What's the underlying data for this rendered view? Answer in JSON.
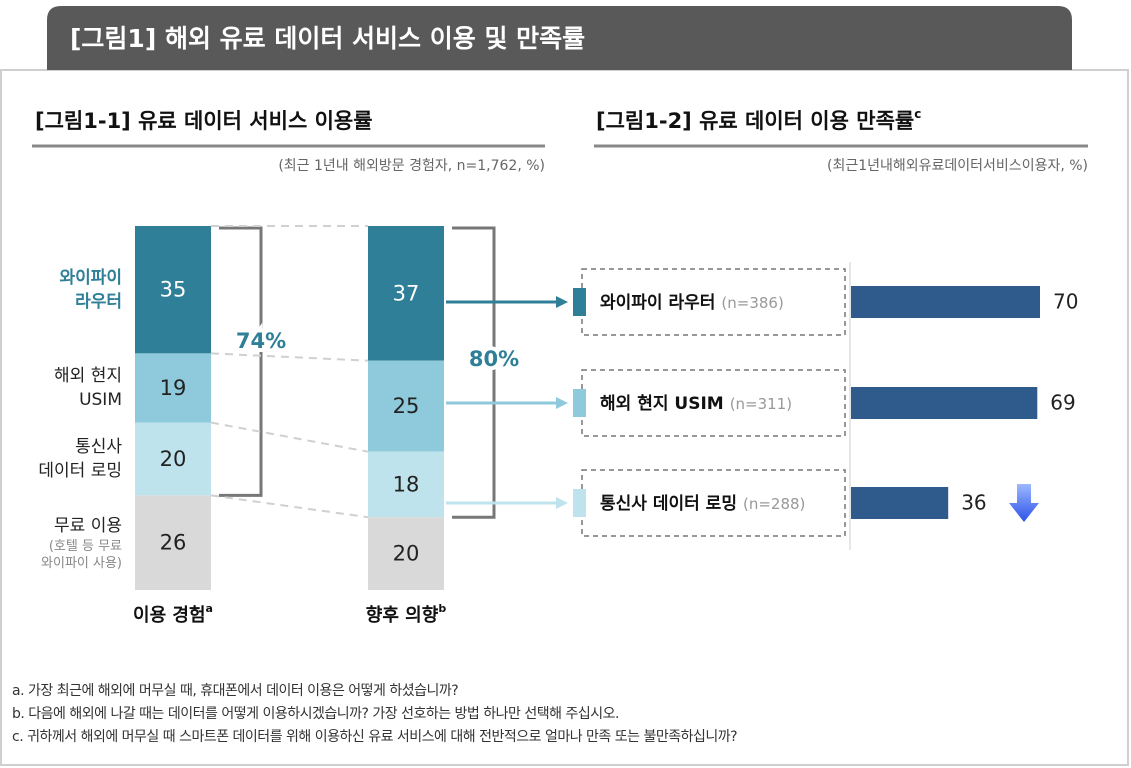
{
  "header": {
    "title": "[그림1] 해외 유료 데이터 서비스 이용 및 만족률"
  },
  "chart_data": [
    {
      "type": "stacked_bar",
      "title": "[그림1-1]  유료 데이터 서비스 이용률",
      "subtitle": "(최근 1년내 해외방문 경험자, n=1,762, %)",
      "categories": [
        "이용 경험",
        "향후 의향"
      ],
      "category_notes": [
        "a",
        "b"
      ],
      "series": [
        {
          "name": "와이파이\n라우터",
          "color": "#2e7f97",
          "values": [
            35,
            37
          ]
        },
        {
          "name": "해외 현지\nUSIM",
          "color": "#8ecadb",
          "values": [
            19,
            25
          ]
        },
        {
          "name": "통신사\n데이터 로밍",
          "color": "#bfe3ec",
          "values": [
            20,
            18
          ]
        },
        {
          "name": "무료 이용",
          "note": "(호텔 등 무료\n와이파이 사용)",
          "color": "#d9d9d9",
          "values": [
            26,
            20
          ]
        }
      ],
      "brackets": {
        "values": [
          74,
          80
        ],
        "value_labels": [
          "74%",
          "80%"
        ]
      }
    },
    {
      "type": "hbar",
      "title": "[그림1-2] 유료 데이터 이용 만족률",
      "title_note": "c",
      "subtitle": "(최근1년내해외유료데이터서비스이용자, %)",
      "categories": [
        "와이파이 라우터",
        "해외 현지 USIM",
        "통신사 데이터 로밍"
      ],
      "sample_sizes": [
        "(n=386)",
        "(n=311)",
        "(n=288)"
      ],
      "values": [
        70,
        69,
        36
      ],
      "color": "#2e5a8c"
    }
  ],
  "footnotes": [
    "a. 가장 최근에 해외에 머무실 때, 휴대폰에서 데이터 이용은 어떻게 하셨습니까?",
    "b. 다음에 해외에 나갈 때는 데이터를 어떻게 이용하시겠습니까? 가장 선호하는 방법 하나만 선택해 주십시오.",
    "c. 귀하께서 해외에 머무실 때 스마트폰 데이터를 위해 이용하신 유료 서비스에 대해 전반적으로 얼마나 만족 또는 불만족하십니까?"
  ]
}
